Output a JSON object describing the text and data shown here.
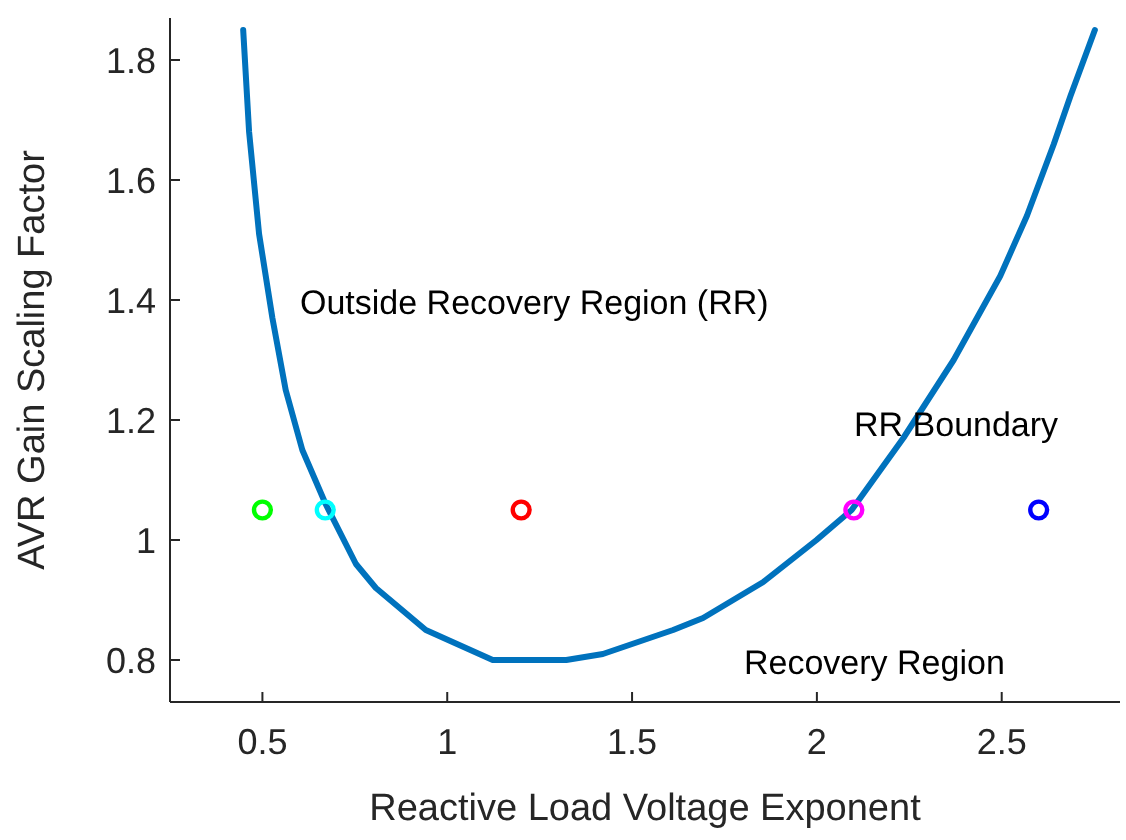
{
  "chart_data": {
    "type": "line",
    "xlabel": "Reactive Load Voltage Exponent",
    "ylabel": "AVR Gain Scaling Factor",
    "xlim": [
      0.25,
      2.82
    ],
    "ylim": [
      0.73,
      1.87
    ],
    "xticks": [
      0.5,
      1,
      1.5,
      2,
      2.5
    ],
    "yticks": [
      0.8,
      1,
      1.2,
      1.4,
      1.6,
      1.8
    ],
    "grid": false,
    "series": [
      {
        "color": "#0072bd",
        "marker": "none",
        "x": [
          0.448,
          0.464,
          0.491,
          0.527,
          0.563,
          0.608,
          0.671,
          0.753,
          0.807,
          0.942,
          1.123,
          1.322,
          1.421,
          1.611,
          1.692,
          1.855,
          1.999,
          2.094,
          2.234,
          2.37,
          2.496,
          2.568,
          2.641,
          2.686,
          2.752
        ],
        "values": [
          1.85,
          1.68,
          1.51,
          1.37,
          1.25,
          1.15,
          1.06,
          0.96,
          0.92,
          0.85,
          0.8,
          0.8,
          0.81,
          0.85,
          0.87,
          0.93,
          1.0,
          1.05,
          1.17,
          1.3,
          1.44,
          1.54,
          1.66,
          1.74,
          1.85
        ]
      },
      {
        "type": "scatter",
        "color": "#00ff00",
        "marker": "circle",
        "x": [
          0.5
        ],
        "values": [
          1.05
        ]
      },
      {
        "type": "scatter",
        "color": "#00ffff",
        "marker": "circle",
        "x": [
          0.67
        ],
        "values": [
          1.05
        ]
      },
      {
        "type": "scatter",
        "color": "#ff0000",
        "marker": "circle",
        "x": [
          1.2
        ],
        "values": [
          1.05
        ]
      },
      {
        "type": "scatter",
        "color": "#ff00ff",
        "marker": "circle",
        "x": [
          2.1
        ],
        "values": [
          1.05
        ]
      },
      {
        "type": "scatter",
        "color": "#0000ff",
        "marker": "circle",
        "x": [
          2.6
        ],
        "values": [
          1.05
        ]
      }
    ],
    "annotations": [
      "Outside Recovery Region (RR)",
      "RR Boundary",
      "Recovery Region"
    ]
  }
}
